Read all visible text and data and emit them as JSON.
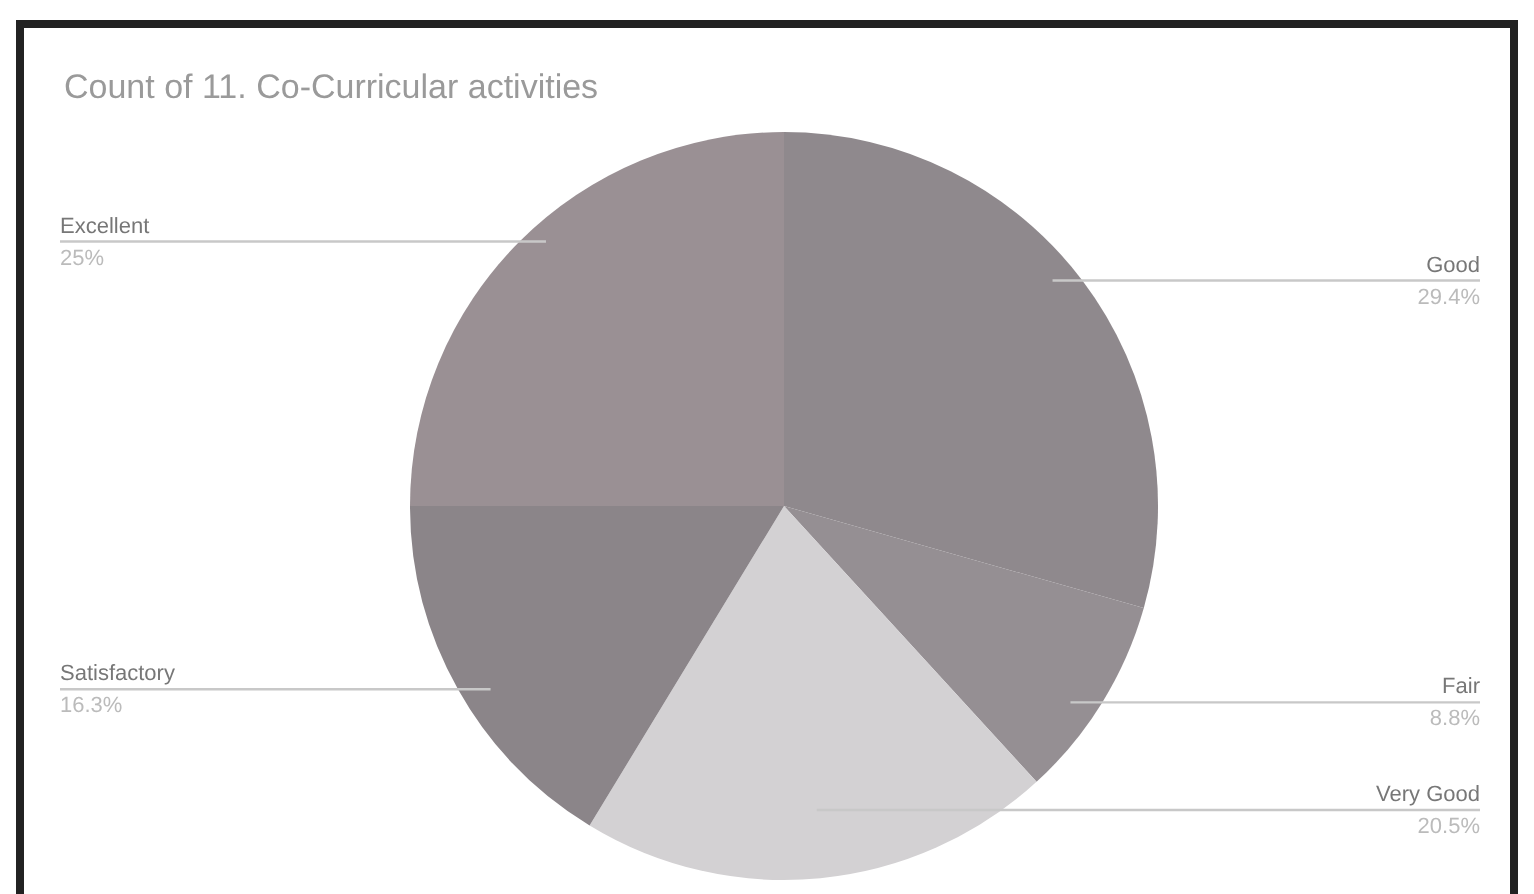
{
  "chart_data": {
    "type": "pie",
    "title": "Count of 11. Co-Curricular activities",
    "categories": [
      "Good",
      "Fair",
      "Very Good",
      "Satisfactory",
      "Excellent"
    ],
    "values": [
      29.4,
      8.8,
      20.5,
      16.3,
      25.0
    ],
    "colors": [
      "#8f898d",
      "#958f93",
      "#d3d1d3",
      "#8b8589",
      "#9a9094"
    ],
    "value_labels": [
      "29.4%",
      "8.8%",
      "20.5%",
      "16.3%",
      "25%"
    ],
    "legend": false
  }
}
